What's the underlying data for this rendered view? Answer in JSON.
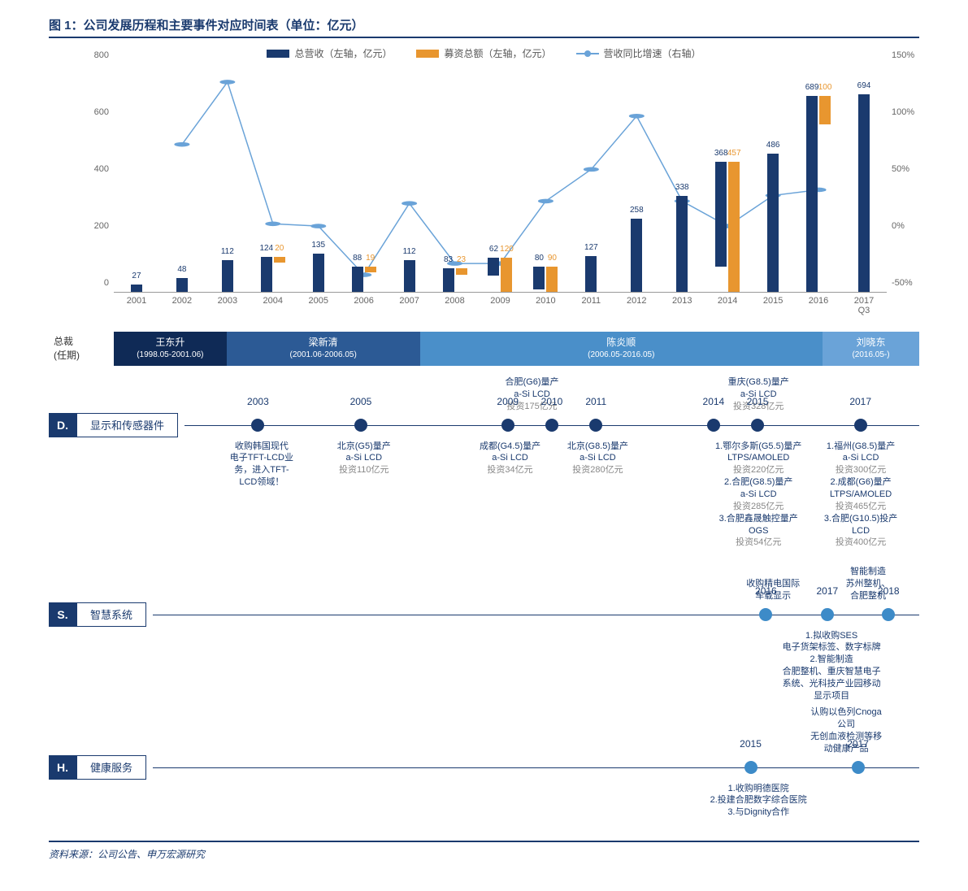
{
  "title": "图 1：公司发展历程和主要事件对应时间表（单位：亿元）",
  "legend": {
    "revenue": {
      "label": "总营收（左轴，亿元）",
      "color": "#1a3a6e"
    },
    "fund": {
      "label": "募资总额（左轴，亿元）",
      "color": "#e8962f"
    },
    "growth": {
      "label": "营收同比增速（右轴）",
      "color": "#6aa3d8"
    }
  },
  "chart": {
    "years": [
      "2001",
      "2002",
      "2003",
      "2004",
      "2005",
      "2006",
      "2007",
      "2008",
      "2009",
      "2010",
      "2011",
      "2012",
      "2013",
      "2014",
      "2015",
      "2016",
      "2017\nQ3"
    ],
    "revenue": [
      27,
      48,
      112,
      124,
      135,
      88,
      112,
      83,
      62,
      80,
      127,
      258,
      338,
      368,
      486,
      689,
      694
    ],
    "fund": [
      null,
      null,
      null,
      20,
      null,
      19,
      null,
      23,
      120,
      90,
      null,
      null,
      null,
      457,
      null,
      100,
      null
    ],
    "growth_pct": [
      null,
      80,
      135,
      10,
      8,
      -35,
      28,
      -25,
      -25,
      30,
      58,
      105,
      30,
      8,
      35,
      40,
      null
    ],
    "yaxis_left": {
      "min": 0,
      "max": 800,
      "step": 200
    },
    "yaxis_right": {
      "min": -50,
      "max": 150,
      "step": 50,
      "suffix": "%"
    },
    "colors": {
      "revenue": "#1a3a6e",
      "fund": "#e8962f",
      "growth": "#6aa3d8"
    },
    "background": "#ffffff"
  },
  "president": {
    "label_line1": "总裁",
    "label_line2": "(任期)",
    "segments": [
      {
        "name": "王东升",
        "period": "(1998.05-2001.06)",
        "color": "#0f2a56",
        "width_pct": 14
      },
      {
        "name": "梁新清",
        "period": "(2001.06-2006.05)",
        "color": "#2c5a95",
        "width_pct": 24
      },
      {
        "name": "陈炎顺",
        "period": "(2006.05-2016.05)",
        "color": "#4a8fc9",
        "width_pct": 50
      },
      {
        "name": "刘晓东",
        "period": "(2016.05-)",
        "color": "#6aa3d8",
        "width_pct": 12
      }
    ]
  },
  "tracks": {
    "D": {
      "tag": "D.",
      "name": "显示和传感器件",
      "node_color": "#1a3a6e",
      "above": [
        {
          "pos_pct": 47,
          "lines_blue": [
            "合肥(G6)量产",
            "a-Si LCD"
          ],
          "lines_gray": [
            "投资175亿元"
          ]
        },
        {
          "pos_pct": 78,
          "lines_blue": [
            "重庆(G8.5)量产",
            "a-Si LCD"
          ],
          "lines_gray": [
            "投资328亿元"
          ]
        }
      ],
      "nodes": [
        {
          "year": "2003",
          "pos_pct": 10,
          "below": {
            "blue": [
              "收购韩国现代",
              "电子TFT-LCD业",
              "务，进入TFT-",
              "LCD领域！"
            ],
            "gray": []
          }
        },
        {
          "year": "2005",
          "pos_pct": 24,
          "below": {
            "blue": [
              "北京(G5)量产",
              "a-Si LCD"
            ],
            "gray": [
              "投资110亿元"
            ]
          }
        },
        {
          "year": "2009",
          "pos_pct": 44,
          "below": {
            "blue": [
              "成都(G4.5)量产",
              "a-Si LCD"
            ],
            "gray": [
              "投资34亿元"
            ]
          }
        },
        {
          "year": "2010",
          "pos_pct": 50,
          "below": null
        },
        {
          "year": "2011",
          "pos_pct": 56,
          "below": {
            "blue": [
              "北京(G8.5)量产",
              "a-Si LCD"
            ],
            "gray": [
              "投资280亿元"
            ]
          }
        },
        {
          "year": "2014",
          "pos_pct": 72,
          "below": null
        },
        {
          "year": "2015",
          "pos_pct": 78,
          "below": {
            "blue": [
              "1.鄂尔多斯(G5.5)量产",
              "LTPS/AMOLED"
            ],
            "gray": [
              "投资220亿元"
            ],
            "more": [
              {
                "blue": [
                  "2.合肥(G8.5)量产",
                  "a-Si LCD"
                ],
                "gray": [
                  "投资285亿元"
                ]
              },
              {
                "blue": [
                  "3.合肥鑫晟触控量产",
                  "OGS"
                ],
                "gray": [
                  "投资54亿元"
                ]
              }
            ]
          }
        },
        {
          "year": "2017",
          "pos_pct": 92,
          "below": {
            "blue": [
              "1.福州(G8.5)量产",
              "a-Si LCD"
            ],
            "gray": [
              "投资300亿元"
            ],
            "more": [
              {
                "blue": [
                  "2.成都(G6)量产",
                  "LTPS/AMOLED"
                ],
                "gray": [
                  "投资465亿元"
                ]
              },
              {
                "blue": [
                  "3.合肥(G10.5)投产",
                  "LCD"
                ],
                "gray": [
                  "投资400亿元"
                ]
              }
            ]
          }
        }
      ]
    },
    "S": {
      "tag": "S.",
      "name": "智慧系统",
      "node_color": "#3d8bc8",
      "above": [
        {
          "pos_pct": 80,
          "lines_blue": [
            "收购精电国际",
            "车载显示"
          ],
          "lines_gray": []
        },
        {
          "pos_pct": 93,
          "lines_blue": [
            "智能制造",
            "苏州整机、合肥整机"
          ],
          "lines_gray": []
        }
      ],
      "nodes": [
        {
          "year": "2016",
          "pos_pct": 80,
          "below": null
        },
        {
          "year": "2017",
          "pos_pct": 88,
          "below": {
            "blue": [
              "1.拟收购SES",
              "电子货架标签、数字标牌",
              "2.智能制造",
              "合肥整机、重庆智慧电子",
              "系统、光科技产业园移动",
              "显示项目"
            ],
            "gray": []
          }
        },
        {
          "year": "2018",
          "pos_pct": 96,
          "below": null
        }
      ]
    },
    "H": {
      "tag": "H.",
      "name": "健康服务",
      "node_color": "#3d8bc8",
      "above": [
        {
          "pos_pct": 90,
          "lines_blue": [
            "认购以色列Cnoga公司",
            "无创血液检测等移动健康产品"
          ],
          "lines_gray": []
        }
      ],
      "nodes": [
        {
          "year": "2015",
          "pos_pct": 78,
          "below": {
            "blue": [
              "1.收购明德医院",
              "2.投建合肥数字综合医院",
              "3.与Dignity合作"
            ],
            "gray": []
          }
        },
        {
          "year": "2017",
          "pos_pct": 92,
          "below": null
        }
      ]
    }
  },
  "source": "资料来源：公司公告、申万宏源研究"
}
